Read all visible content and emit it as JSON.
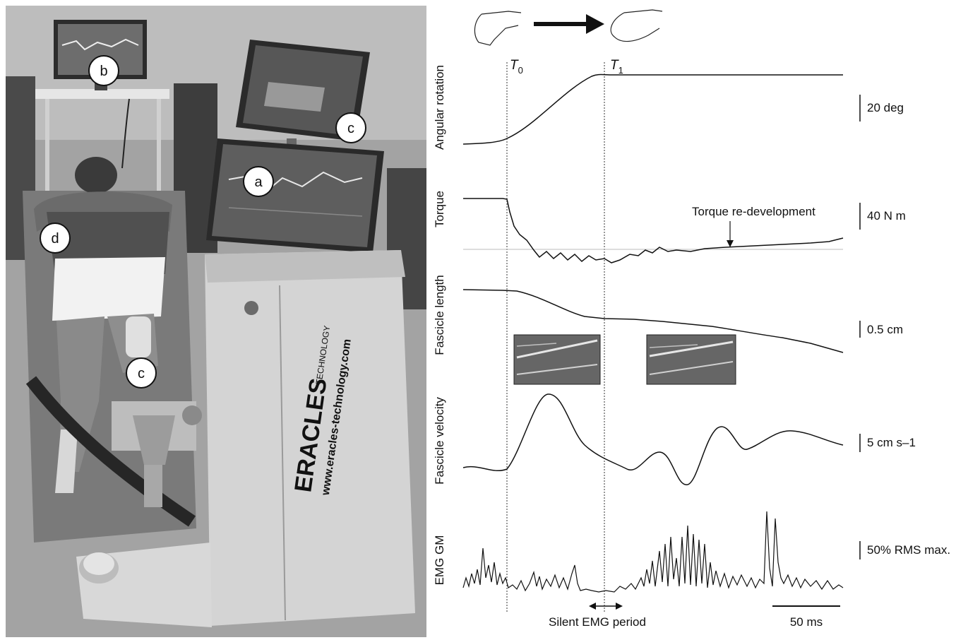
{
  "photo": {
    "callouts": [
      "a",
      "b",
      "c",
      "c",
      "d"
    ],
    "machine_brand": "ERACLES",
    "machine_brand_suffix": "TECHNOLOGY",
    "machine_url": "www.eracles-technology.com"
  },
  "traces": {
    "markers": {
      "t0": "T",
      "t0_sub": "0",
      "t1": "T",
      "t1_sub": "1"
    },
    "channels": [
      {
        "label": "Angular rotation",
        "scale": "20 deg"
      },
      {
        "label": "Torque",
        "scale": "40 N m"
      },
      {
        "label": "Fascicle length",
        "scale": "0.5 cm"
      },
      {
        "label": "Fascicle velocity",
        "scale": "5 cm s–1"
      },
      {
        "label": "EMG GM",
        "scale": "50% RMS max."
      }
    ],
    "annotations": {
      "torque_redevelopment": "Torque re-development",
      "silent_emg": "Silent EMG period",
      "time_scale": "50 ms"
    }
  },
  "colors": {
    "trace": "#111111",
    "photo_bg": "#9a9a9a",
    "machine": "#cfcfcf"
  }
}
